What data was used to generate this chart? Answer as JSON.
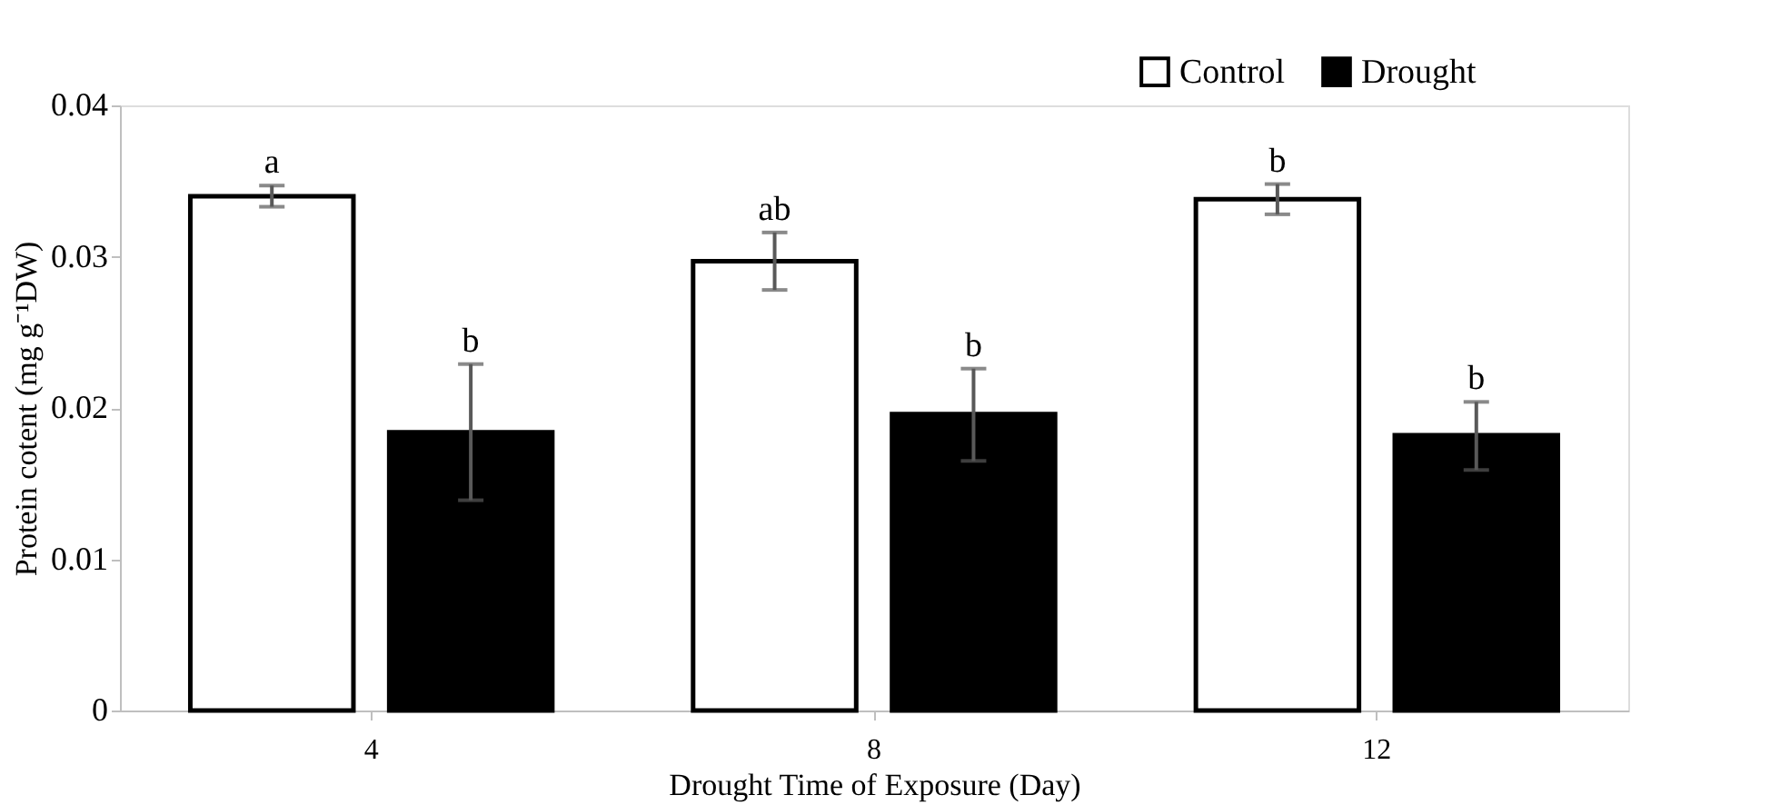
{
  "chart_data": {
    "type": "bar",
    "xlabel": "Drought Time of Exposure (Day)",
    "ylabel": "Protein cotent (mg g⁻¹DW)",
    "categories": [
      "4",
      "8",
      "12"
    ],
    "series": [
      {
        "name": "Control",
        "color": "#ffffff",
        "values": [
          0.034,
          0.0297,
          0.0338
        ],
        "errors": [
          [
            0.0333,
            0.0347
          ],
          [
            0.0278,
            0.0316
          ],
          [
            0.0328,
            0.0348
          ]
        ]
      },
      {
        "name": "Drought",
        "color": "#000000",
        "values": [
          0.0184,
          0.0196,
          0.0182
        ],
        "errors": [
          [
            0.0139,
            0.0229
          ],
          [
            0.0165,
            0.0226
          ],
          [
            0.0159,
            0.0204
          ]
        ]
      }
    ],
    "annotations": [
      "a",
      "ab",
      "b",
      "b",
      "b",
      "b"
    ],
    "ylim": [
      0,
      0.04
    ],
    "yticks": [
      0,
      0.01,
      0.02,
      0.03,
      0.04
    ],
    "grid": false,
    "legend": "top right"
  }
}
